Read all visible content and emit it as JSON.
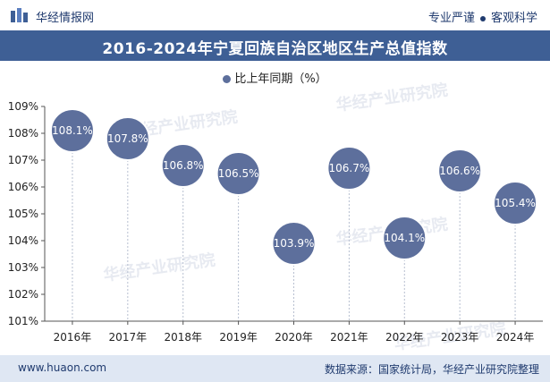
{
  "header": {
    "brand": "华经情报网",
    "tagline_left": "专业严谨",
    "tagline_right": "客观科学"
  },
  "chart_data": {
    "type": "scatter",
    "title": "2016-2024年宁夏回族自治区地区生产总值指数",
    "legend": "比上年同期（%）",
    "categories": [
      "2016年",
      "2017年",
      "2018年",
      "2019年",
      "2020年",
      "2021年",
      "2022年",
      "2023年",
      "2024年"
    ],
    "values": [
      108.1,
      107.8,
      106.8,
      106.5,
      103.9,
      106.7,
      104.1,
      106.6,
      105.4
    ],
    "labels": [
      "108.1%",
      "107.8%",
      "106.8%",
      "106.5%",
      "103.9%",
      "106.7%",
      "104.1%",
      "106.6%",
      "105.4%"
    ],
    "y_ticks": [
      "101%",
      "102%",
      "103%",
      "104%",
      "105%",
      "106%",
      "107%",
      "108%",
      "109%"
    ],
    "ylim": [
      101,
      109
    ],
    "grid": false,
    "series_color": "#5d6f9c"
  },
  "watermark": "华经产业研究院",
  "footer": {
    "site": "www.huaon.com",
    "source": "数据来源：国家统计局，华经产业研究院整理"
  }
}
